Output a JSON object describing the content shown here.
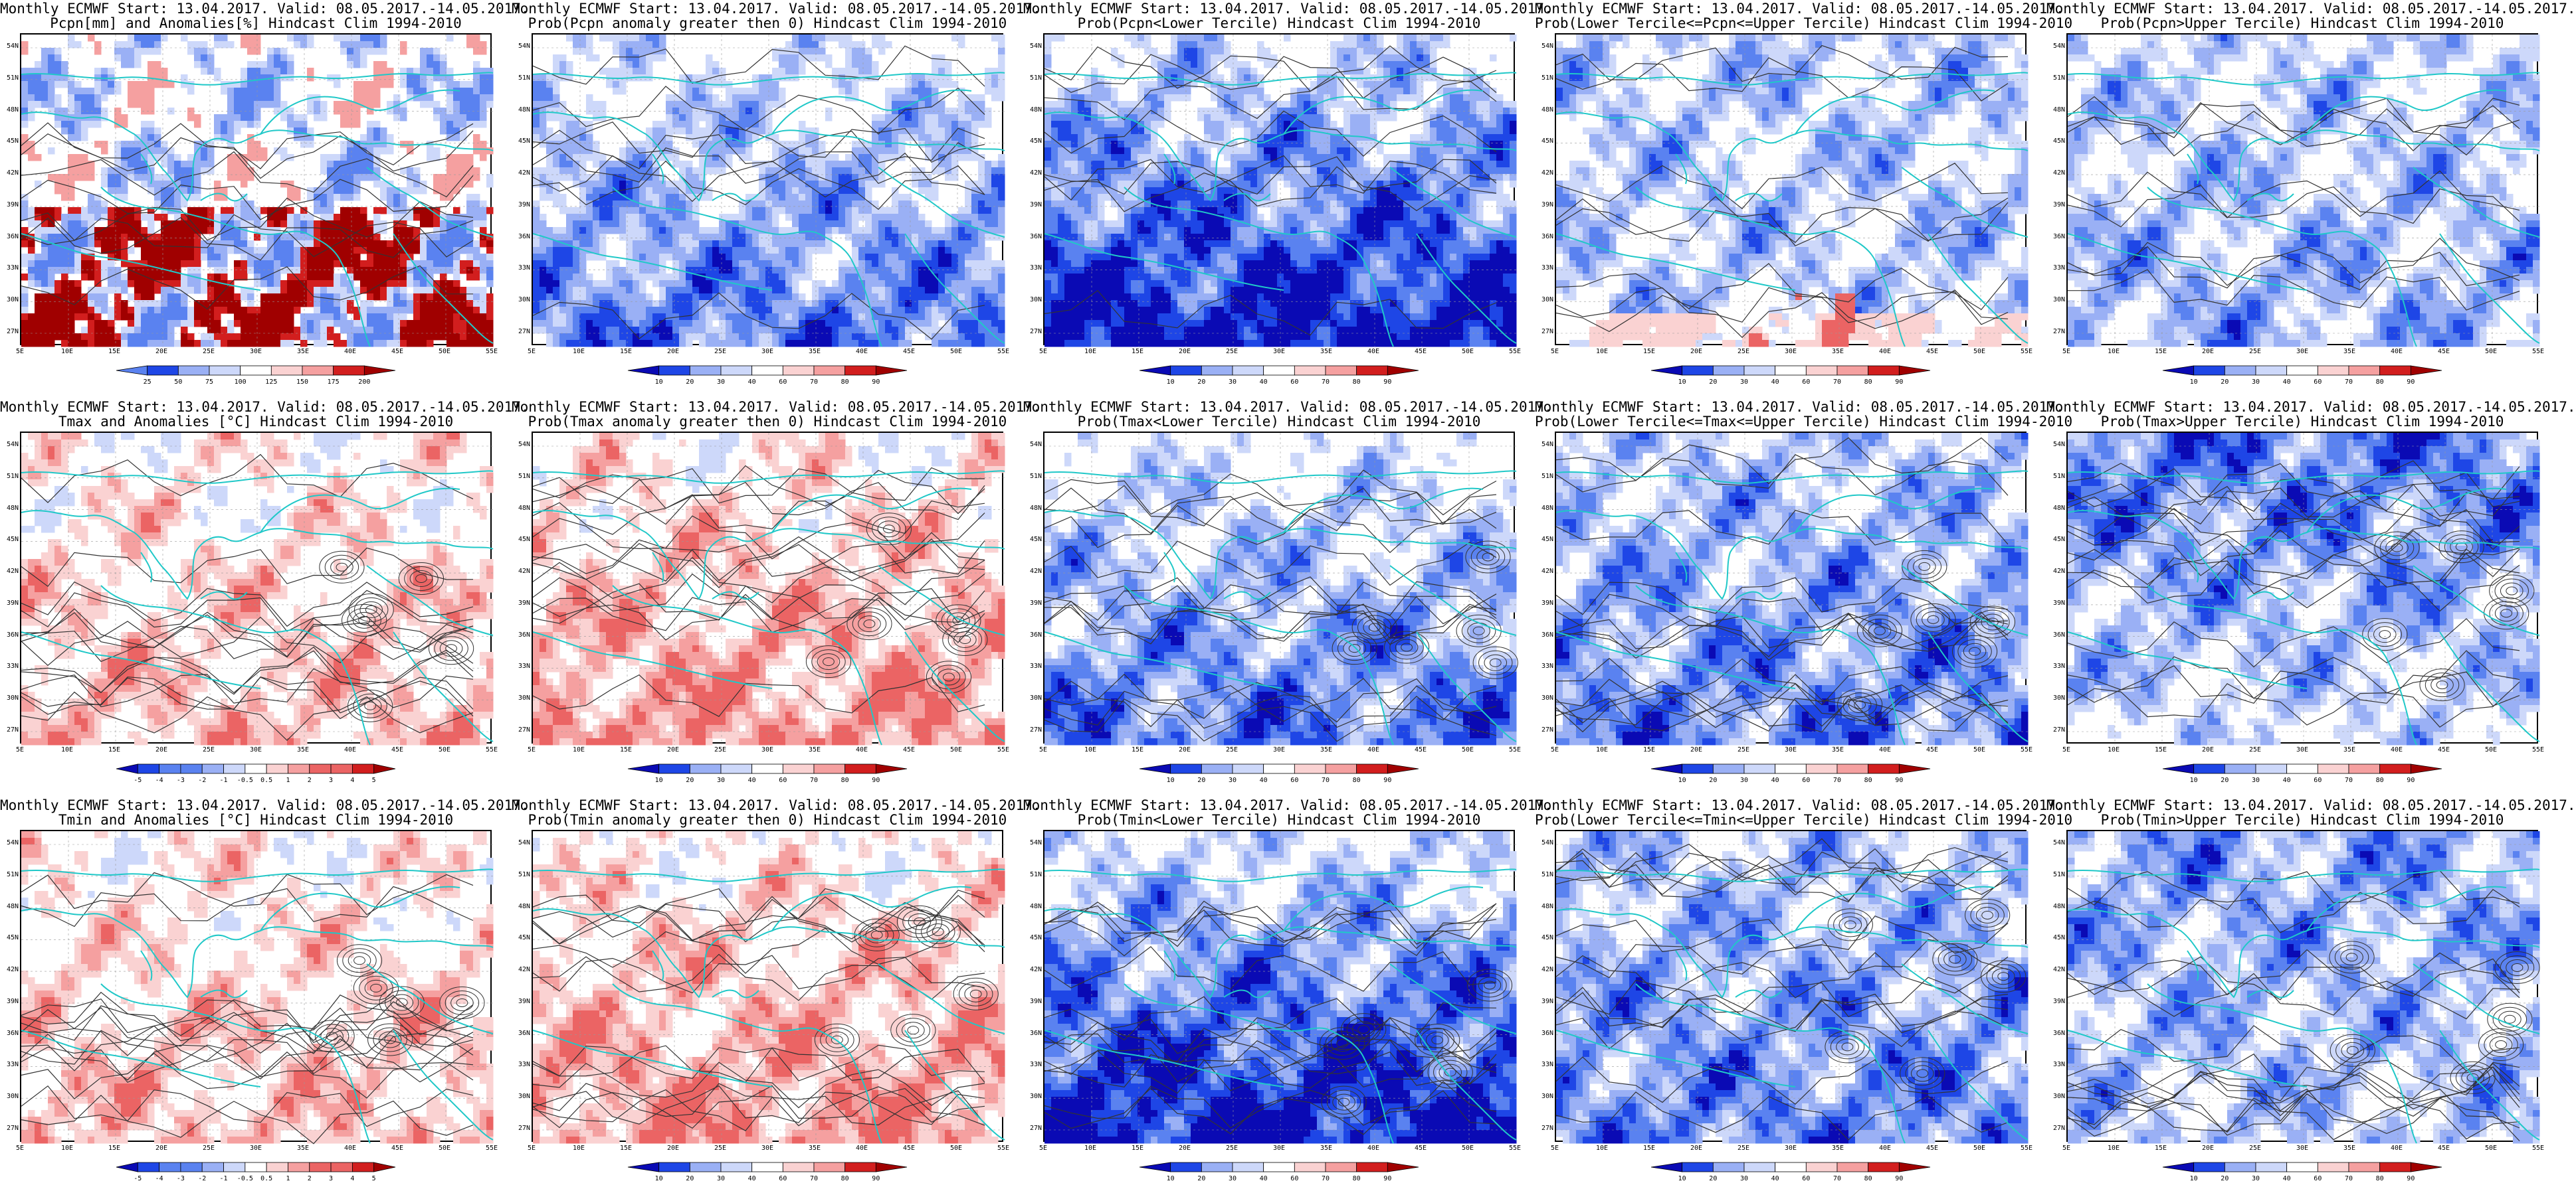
{
  "layout": {
    "rows": 3,
    "cols": 5
  },
  "map": {
    "lat_labels": [
      "54N",
      "51N",
      "48N",
      "45N",
      "42N",
      "39N",
      "36N",
      "33N",
      "30N",
      "27N"
    ],
    "lon_labels": [
      "5E",
      "10E",
      "15E",
      "20E",
      "25E",
      "30E",
      "35E",
      "40E",
      "45E",
      "50E",
      "55E"
    ],
    "lat_range": [
      25,
      55
    ],
    "lon_range": [
      5,
      55
    ]
  },
  "colors": {
    "coast": "#20c8c8",
    "contour": "#333333",
    "blues": [
      "#0a0ab4",
      "#1e46e6",
      "#5a82f0",
      "#9ab0f5",
      "#cdd8fa"
    ],
    "reds": [
      "#fad2d2",
      "#f5a0a0",
      "#eb6464",
      "#d21e1e",
      "#a00000"
    ]
  },
  "colorbars": {
    "pcpn": {
      "labels": [
        "25",
        "50",
        "75",
        "100",
        "125",
        "150",
        "175",
        "200"
      ],
      "scheme": "div-red"
    },
    "prob": {
      "labels": [
        "10",
        "20",
        "30",
        "40",
        "60",
        "70",
        "80",
        "90"
      ],
      "scheme": "div"
    },
    "anom": {
      "labels": [
        "-5",
        "-4",
        "-3",
        "-2",
        "-1",
        "-0.5",
        "0.5",
        "1",
        "2",
        "3",
        "4",
        "5"
      ],
      "scheme": "div"
    }
  },
  "panels": [
    {
      "line1": "Monthly ECMWF Start: 13.04.2017. Valid: 08.05.2017.-14.05.2017.",
      "line2": "Pcpn[mm] and Anomalies[%] Hindcast Clim 1994-2010",
      "field": "pcpn_anom",
      "cbar": "pcpn"
    },
    {
      "line1": "Monthly ECMWF Start: 13.04.2017. Valid: 08.05.2017.-14.05.2017.",
      "line2": "Prob(Pcpn anomaly greater then 0) Hindcast Clim 1994-2010",
      "field": "pcpn_pos",
      "cbar": "prob"
    },
    {
      "line1": "Monthly ECMWF Start: 13.04.2017. Valid: 08.05.2017.-14.05.2017.",
      "line2": "Prob(Pcpn<Lower Tercile) Hindcast Clim 1994-2010",
      "field": "pcpn_low",
      "cbar": "prob"
    },
    {
      "line1": "Monthly ECMWF Start: 13.04.2017. Valid: 08.05.2017.-14.05.2017.",
      "line2": "Prob(Lower Tercile<=Pcpn<=Upper Tercile) Hindcast Clim 1994-2010",
      "field": "pcpn_mid",
      "cbar": "prob"
    },
    {
      "line1": "Monthly ECMWF Start: 13.04.2017. Valid: 08.05.2017.-14.05.2017.",
      "line2": "Prob(Pcpn>Upper Tercile) Hindcast Clim 1994-2010",
      "field": "pcpn_up",
      "cbar": "prob"
    },
    {
      "line1": "Monthly ECMWF Start: 13.04.2017. Valid: 08.05.2017.-14.05.2017.",
      "line2": "Tmax and Anomalies [°C] Hindcast Clim 1994-2010",
      "field": "tmax_anom",
      "cbar": "anom"
    },
    {
      "line1": "Monthly ECMWF Start: 13.04.2017. Valid: 08.05.2017.-14.05.2017.",
      "line2": "Prob(Tmax anomaly greater then 0) Hindcast Clim 1994-2010",
      "field": "tmax_pos",
      "cbar": "prob"
    },
    {
      "line1": "Monthly ECMWF Start: 13.04.2017. Valid: 08.05.2017.-14.05.2017.",
      "line2": "Prob(Tmax<Lower Tercile) Hindcast Clim 1994-2010",
      "field": "tmax_low",
      "cbar": "prob"
    },
    {
      "line1": "Monthly ECMWF Start: 13.04.2017. Valid: 08.05.2017.-14.05.2017.",
      "line2": "Prob(Lower Tercile<=Tmax<=Upper Tercile) Hindcast Clim 1994-2010",
      "field": "tmax_mid",
      "cbar": "prob"
    },
    {
      "line1": "Monthly ECMWF Start: 13.04.2017. Valid: 08.05.2017.-14.05.2017.",
      "line2": "Prob(Tmax>Upper Tercile) Hindcast Clim 1994-2010",
      "field": "tmax_up",
      "cbar": "prob"
    },
    {
      "line1": "Monthly ECMWF Start: 13.04.2017. Valid: 08.05.2017.-14.05.2017.",
      "line2": "Tmin and Anomalies [°C] Hindcast Clim 1994-2010",
      "field": "tmin_anom",
      "cbar": "anom"
    },
    {
      "line1": "Monthly ECMWF Start: 13.04.2017. Valid: 08.05.2017.-14.05.2017.",
      "line2": "Prob(Tmin anomaly greater then 0) Hindcast Clim 1994-2010",
      "field": "tmin_pos",
      "cbar": "prob"
    },
    {
      "line1": "Monthly ECMWF Start: 13.04.2017. Valid: 08.05.2017.-14.05.2017.",
      "line2": "Prob(Tmin<Lower Tercile) Hindcast Clim 1994-2010",
      "field": "tmin_low",
      "cbar": "prob"
    },
    {
      "line1": "Monthly ECMWF Start: 13.04.2017. Valid: 08.05.2017.-14.05.2017.",
      "line2": "Prob(Lower Tercile<=Tmin<=Upper Tercile) Hindcast Clim 1994-2010",
      "field": "tmin_mid",
      "cbar": "prob"
    },
    {
      "line1": "Monthly ECMWF Start: 13.04.2017. Valid: 08.05.2017.-14.05.2017.",
      "line2": "Prob(Tmin>Upper Tercile) Hindcast Clim 1994-2010",
      "field": "tmin_up",
      "cbar": "prob"
    }
  ]
}
